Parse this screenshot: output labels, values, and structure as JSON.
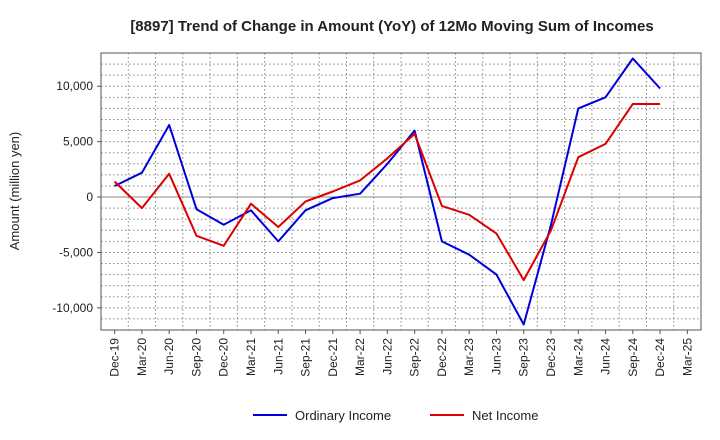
{
  "chart_data": {
    "type": "line",
    "title": "[8897]  Trend of Change in Amount (YoY) of 12Mo Moving Sum of Incomes",
    "xlabel": "",
    "ylabel": "Amount (million yen)",
    "ylim": [
      -12000,
      13000
    ],
    "yticks": [
      -10000,
      -5000,
      0,
      5000,
      10000
    ],
    "ytick_labels": [
      "-10,000",
      "-5,000",
      "0",
      "5,000",
      "10,000"
    ],
    "grid": true,
    "legend_position": "bottom-center",
    "categories": [
      "Dec-19",
      "Mar-20",
      "Jun-20",
      "Sep-20",
      "Dec-20",
      "Mar-21",
      "Jun-21",
      "Sep-21",
      "Dec-21",
      "Mar-22",
      "Jun-22",
      "Sep-22",
      "Dec-22",
      "Mar-23",
      "Jun-23",
      "Sep-23",
      "Dec-23",
      "Mar-24",
      "Jun-24",
      "Sep-24",
      "Dec-24",
      "Mar-25"
    ],
    "series": [
      {
        "name": "Ordinary Income",
        "color": "#0000dd",
        "values": [
          1000,
          2200,
          6500,
          -1100,
          -2500,
          -1200,
          -4000,
          -1200,
          -100,
          300,
          3000,
          6000,
          -4000,
          -5200,
          -7000,
          -11500,
          -2500,
          8000,
          9000,
          12500,
          9800,
          null
        ]
      },
      {
        "name": "Net Income",
        "color": "#dd0000",
        "values": [
          1400,
          -1000,
          2100,
          -3500,
          -4400,
          -600,
          -2700,
          -400,
          500,
          1500,
          3500,
          5700,
          -800,
          -1600,
          -3300,
          -7500,
          -3000,
          3600,
          4800,
          8400,
          8400,
          null
        ]
      }
    ]
  }
}
